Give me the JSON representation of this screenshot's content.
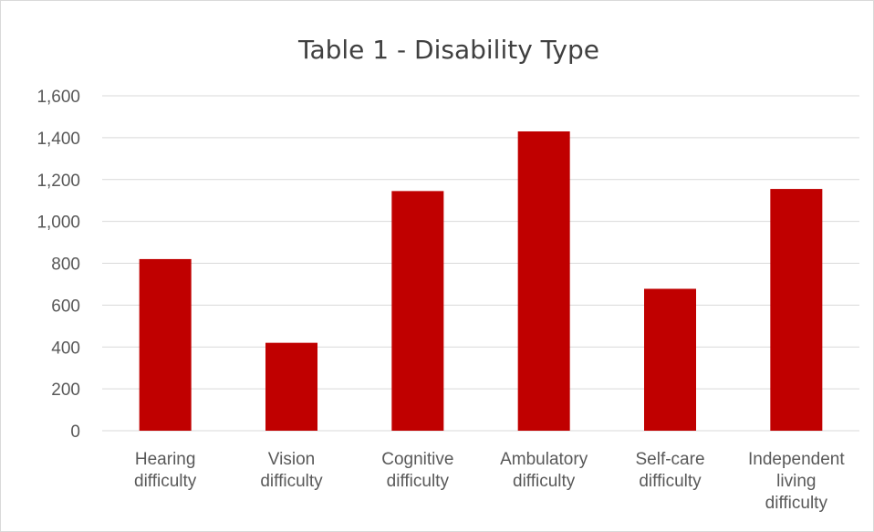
{
  "chart_data": {
    "type": "bar",
    "title": "Table 1 - Disability Type",
    "xlabel": "",
    "ylabel": "",
    "categories": [
      [
        "Hearing",
        "difficulty"
      ],
      [
        "Vision",
        "difficulty"
      ],
      [
        "Cognitive",
        "difficulty"
      ],
      [
        "Ambulatory",
        "difficulty"
      ],
      [
        "Self-care",
        "difficulty"
      ],
      [
        "Independent",
        "living",
        "difficulty"
      ]
    ],
    "values": [
      820,
      420,
      1145,
      1430,
      678,
      1155
    ],
    "ylim": [
      0,
      1600
    ],
    "yticks": [
      "0",
      "200",
      "400",
      "600",
      "800",
      "1,000",
      "1,200",
      "1,400",
      "1,600"
    ],
    "grid": true,
    "legend": "none",
    "bar_color": "#c00000"
  }
}
